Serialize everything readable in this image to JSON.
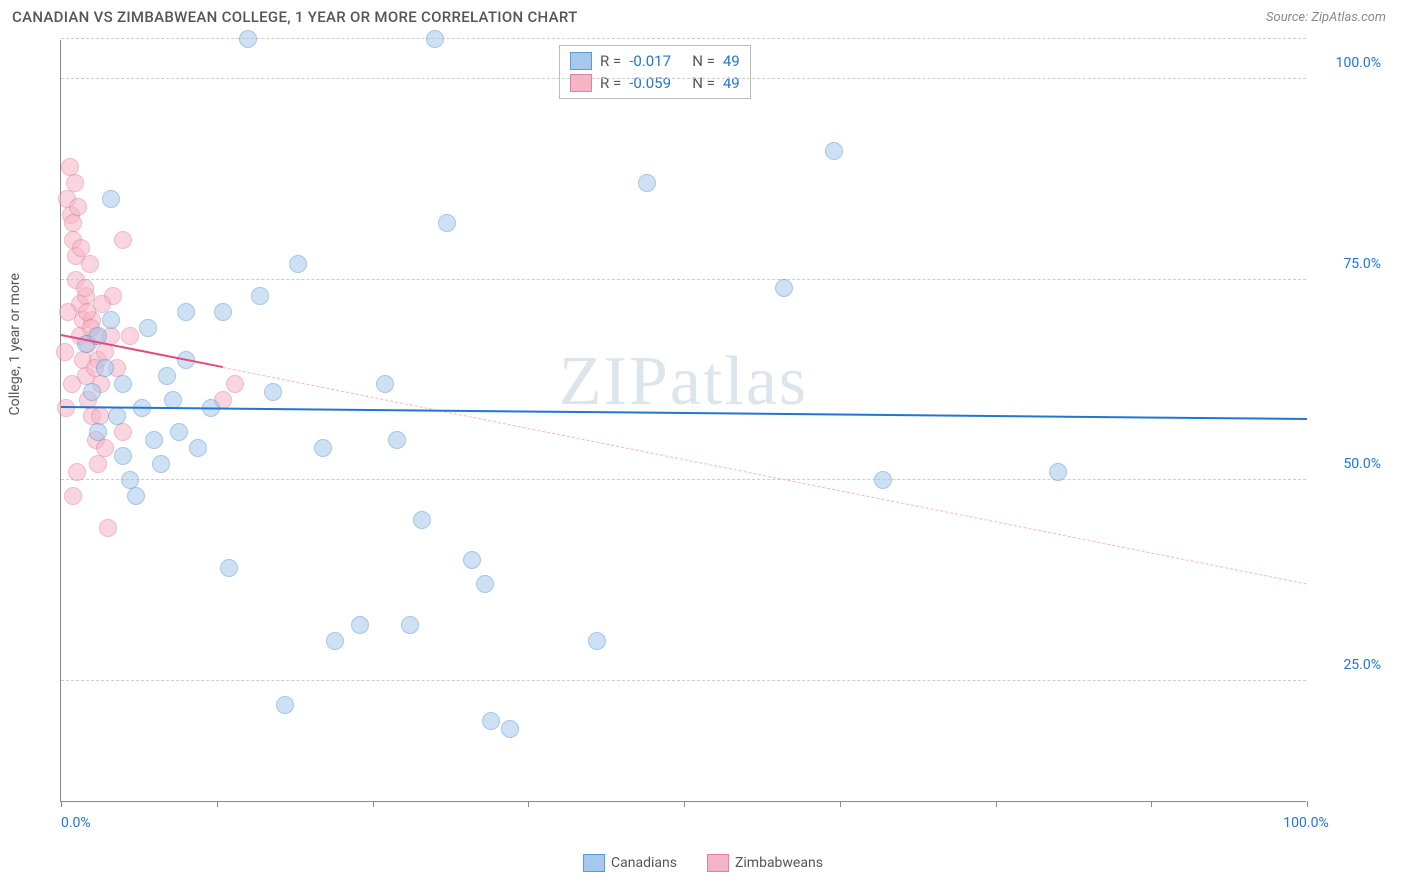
{
  "header": {
    "title": "CANADIAN VS ZIMBABWEAN COLLEGE, 1 YEAR OR MORE CORRELATION CHART",
    "source": "Source: ZipAtlas.com"
  },
  "chart": {
    "type": "scatter",
    "y_axis_title": "College, 1 year or more",
    "watermark": "ZIPatlas",
    "background_color": "#ffffff",
    "grid_color": "#cccccc",
    "axis_color": "#888888",
    "xlim": [
      0,
      100
    ],
    "ylim": [
      10,
      105
    ],
    "x_ticks": [
      0,
      12.5,
      25,
      37.5,
      50,
      62.5,
      75,
      87.5,
      100
    ],
    "x_tick_labels_shown": {
      "0": "0.0%",
      "100": "100.0%"
    },
    "y_gridlines": [
      25,
      50,
      75,
      100,
      105
    ],
    "y_tick_labels": {
      "25": "25.0%",
      "50": "50.0%",
      "75": "75.0%",
      "100": "100.0%"
    },
    "label_color": "#2176d2",
    "label_fontsize": 14,
    "marker_radius": 9,
    "marker_opacity": 0.55,
    "series": {
      "canadians": {
        "label": "Canadians",
        "color_fill": "#a6c8ec",
        "color_stroke": "#5a9bd5",
        "trend_color": "#2176d2",
        "trend_width": 2.5,
        "trend_style": "solid",
        "trend_dashed_ext_color": "#f5b5c5",
        "r": "-0.017",
        "n": "49",
        "trend": {
          "x1": 0,
          "y1": 59,
          "x2": 100,
          "y2": 57.5
        },
        "points": [
          [
            2,
            67
          ],
          [
            2.5,
            61
          ],
          [
            3,
            68
          ],
          [
            3.5,
            64
          ],
          [
            3,
            56
          ],
          [
            4,
            70
          ],
          [
            4.5,
            58
          ],
          [
            5,
            53
          ],
          [
            5,
            62
          ],
          [
            5.5,
            50
          ],
          [
            6,
            48
          ],
          [
            6.5,
            59
          ],
          [
            7,
            69
          ],
          [
            7.5,
            55
          ],
          [
            8,
            52
          ],
          [
            8.5,
            63
          ],
          [
            9,
            60
          ],
          [
            9.5,
            56
          ],
          [
            10,
            71
          ],
          [
            10,
            65
          ],
          [
            11,
            54
          ],
          [
            12,
            59
          ],
          [
            13,
            71
          ],
          [
            13.5,
            39
          ],
          [
            15,
            105
          ],
          [
            16,
            73
          ],
          [
            17,
            61
          ],
          [
            19,
            77
          ],
          [
            21,
            54
          ],
          [
            22,
            30
          ],
          [
            24,
            32
          ],
          [
            18,
            22
          ],
          [
            26,
            62
          ],
          [
            27,
            55
          ],
          [
            28,
            32
          ],
          [
            29,
            45
          ],
          [
            30,
            105
          ],
          [
            31,
            82
          ],
          [
            33,
            40
          ],
          [
            34,
            37
          ],
          [
            34.5,
            20
          ],
          [
            36,
            19
          ],
          [
            43,
            30
          ],
          [
            47,
            87
          ],
          [
            58,
            74
          ],
          [
            62,
            91
          ],
          [
            66,
            50
          ],
          [
            80,
            51
          ],
          [
            4,
            85
          ]
        ]
      },
      "zimbabweans": {
        "label": "Zimbabweans",
        "color_fill": "#f5b5c5",
        "color_stroke": "#e87fa0",
        "trend_color": "#e84a7a",
        "trend_width": 2,
        "r": "-0.059",
        "n": "49",
        "trend_solid": {
          "x1": 0,
          "y1": 68,
          "x2": 13,
          "y2": 64
        },
        "trend_dashed": {
          "x1": 13,
          "y1": 64,
          "x2": 100,
          "y2": 37
        },
        "points": [
          [
            0.5,
            85
          ],
          [
            0.8,
            83
          ],
          [
            1,
            80
          ],
          [
            1,
            82
          ],
          [
            1.2,
            78
          ],
          [
            1.2,
            75
          ],
          [
            1.5,
            72
          ],
          [
            1.5,
            68
          ],
          [
            1.8,
            70
          ],
          [
            1.8,
            65
          ],
          [
            2,
            73
          ],
          [
            2,
            63
          ],
          [
            2.2,
            67
          ],
          [
            2.2,
            60
          ],
          [
            2.5,
            70
          ],
          [
            2.5,
            58
          ],
          [
            2.8,
            68
          ],
          [
            2.8,
            55
          ],
          [
            3,
            65
          ],
          [
            3,
            52
          ],
          [
            3.2,
            62
          ],
          [
            3.5,
            66
          ],
          [
            3.5,
            54
          ],
          [
            3.8,
            44
          ],
          [
            4,
            68
          ],
          [
            4.2,
            73
          ],
          [
            4.5,
            64
          ],
          [
            5,
            80
          ],
          [
            5,
            56
          ],
          [
            5.5,
            68
          ],
          [
            1,
            48
          ],
          [
            1.3,
            51
          ],
          [
            0.7,
            89
          ],
          [
            2.3,
            77
          ],
          [
            3.3,
            72
          ],
          [
            0.3,
            66
          ],
          [
            0.4,
            59
          ],
          [
            0.6,
            71
          ],
          [
            0.9,
            62
          ],
          [
            13,
            60
          ],
          [
            14,
            62
          ],
          [
            1.1,
            87
          ],
          [
            1.4,
            84
          ],
          [
            1.6,
            79
          ],
          [
            1.9,
            74
          ],
          [
            2.1,
            71
          ],
          [
            2.4,
            69
          ],
          [
            2.7,
            64
          ],
          [
            3.1,
            58
          ]
        ]
      }
    },
    "stats_box": {
      "rows": [
        {
          "swatch_fill": "#a6c8ec",
          "swatch_stroke": "#5a9bd5",
          "r_label": "R =",
          "r_val": "-0.017",
          "n_label": "N =",
          "n_val": "49"
        },
        {
          "swatch_fill": "#f5b5c5",
          "swatch_stroke": "#e87fa0",
          "r_label": "R =",
          "r_val": "-0.059",
          "n_label": "N =",
          "n_val": "49"
        }
      ]
    },
    "legend": [
      {
        "swatch_fill": "#a6c8ec",
        "swatch_stroke": "#5a9bd5",
        "label": "Canadians"
      },
      {
        "swatch_fill": "#f5b5c5",
        "swatch_stroke": "#e87fa0",
        "label": "Zimbabweans"
      }
    ]
  }
}
